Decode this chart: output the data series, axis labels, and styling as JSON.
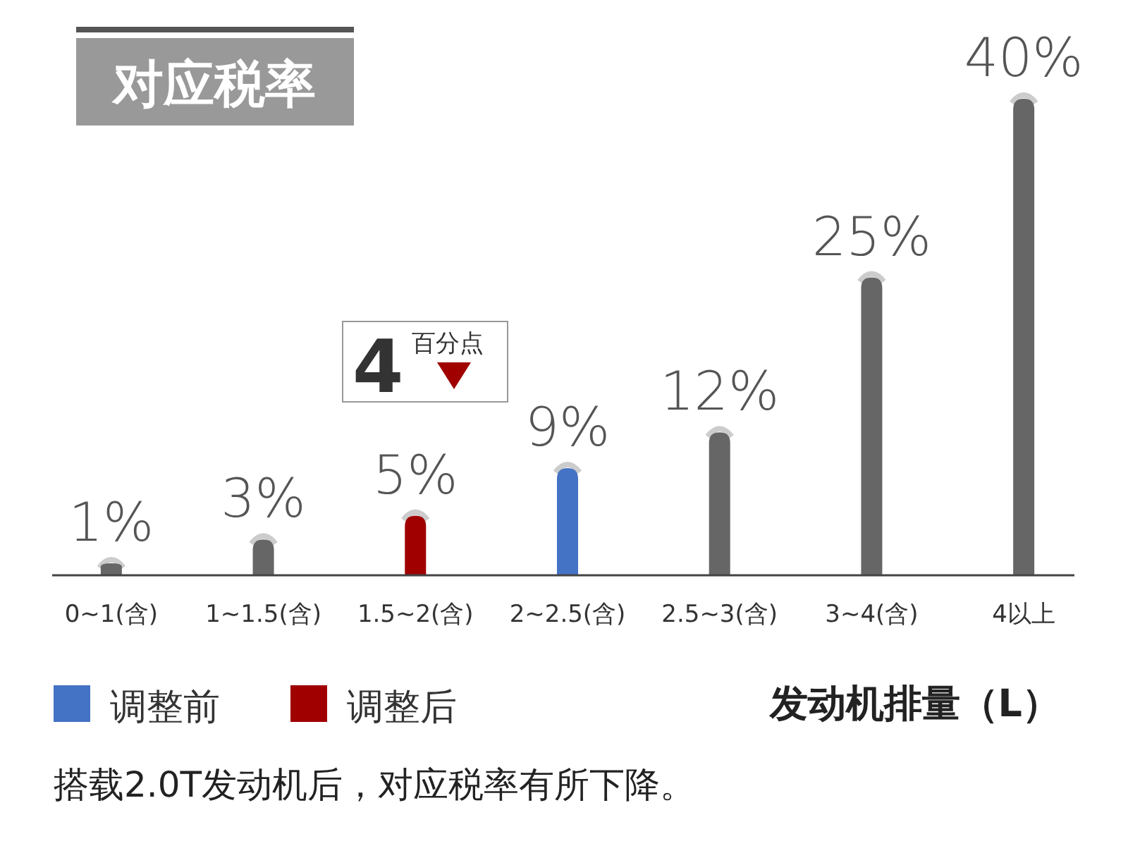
{
  "chart_data": {
    "type": "bar",
    "title": "对应税率",
    "xlabel": "发动机排量（L）",
    "categories": [
      "0~1(含)",
      "1~1.5(含)",
      "1.5~2(含)",
      "2~2.5(含)",
      "2.5~3(含)",
      "3~4(含)",
      "4以上"
    ],
    "legend": "bottom left",
    "series": [
      {
        "color": "#666666",
        "values": [
          1,
          3,
          null,
          null,
          12,
          25,
          40
        ],
        "value_labels": [
          "1%",
          "3%",
          null,
          null,
          "12%",
          "25%",
          "40%"
        ]
      },
      {
        "name": "调整前",
        "color": "#4472c4",
        "values": [
          null,
          null,
          null,
          9,
          null,
          null,
          null
        ],
        "value_labels": [
          null,
          null,
          null,
          "9%",
          null,
          null,
          null
        ]
      },
      {
        "name": "调整后",
        "color": "#a00000",
        "values": [
          null,
          null,
          5,
          null,
          null,
          null,
          null
        ],
        "value_labels": [
          null,
          null,
          "5%",
          null,
          null,
          null,
          null
        ]
      }
    ],
    "annotations": [
      "4",
      "百分点",
      {
        "text": "搭载2.0T发动机后，对应税率有所下降。"
      }
    ]
  }
}
